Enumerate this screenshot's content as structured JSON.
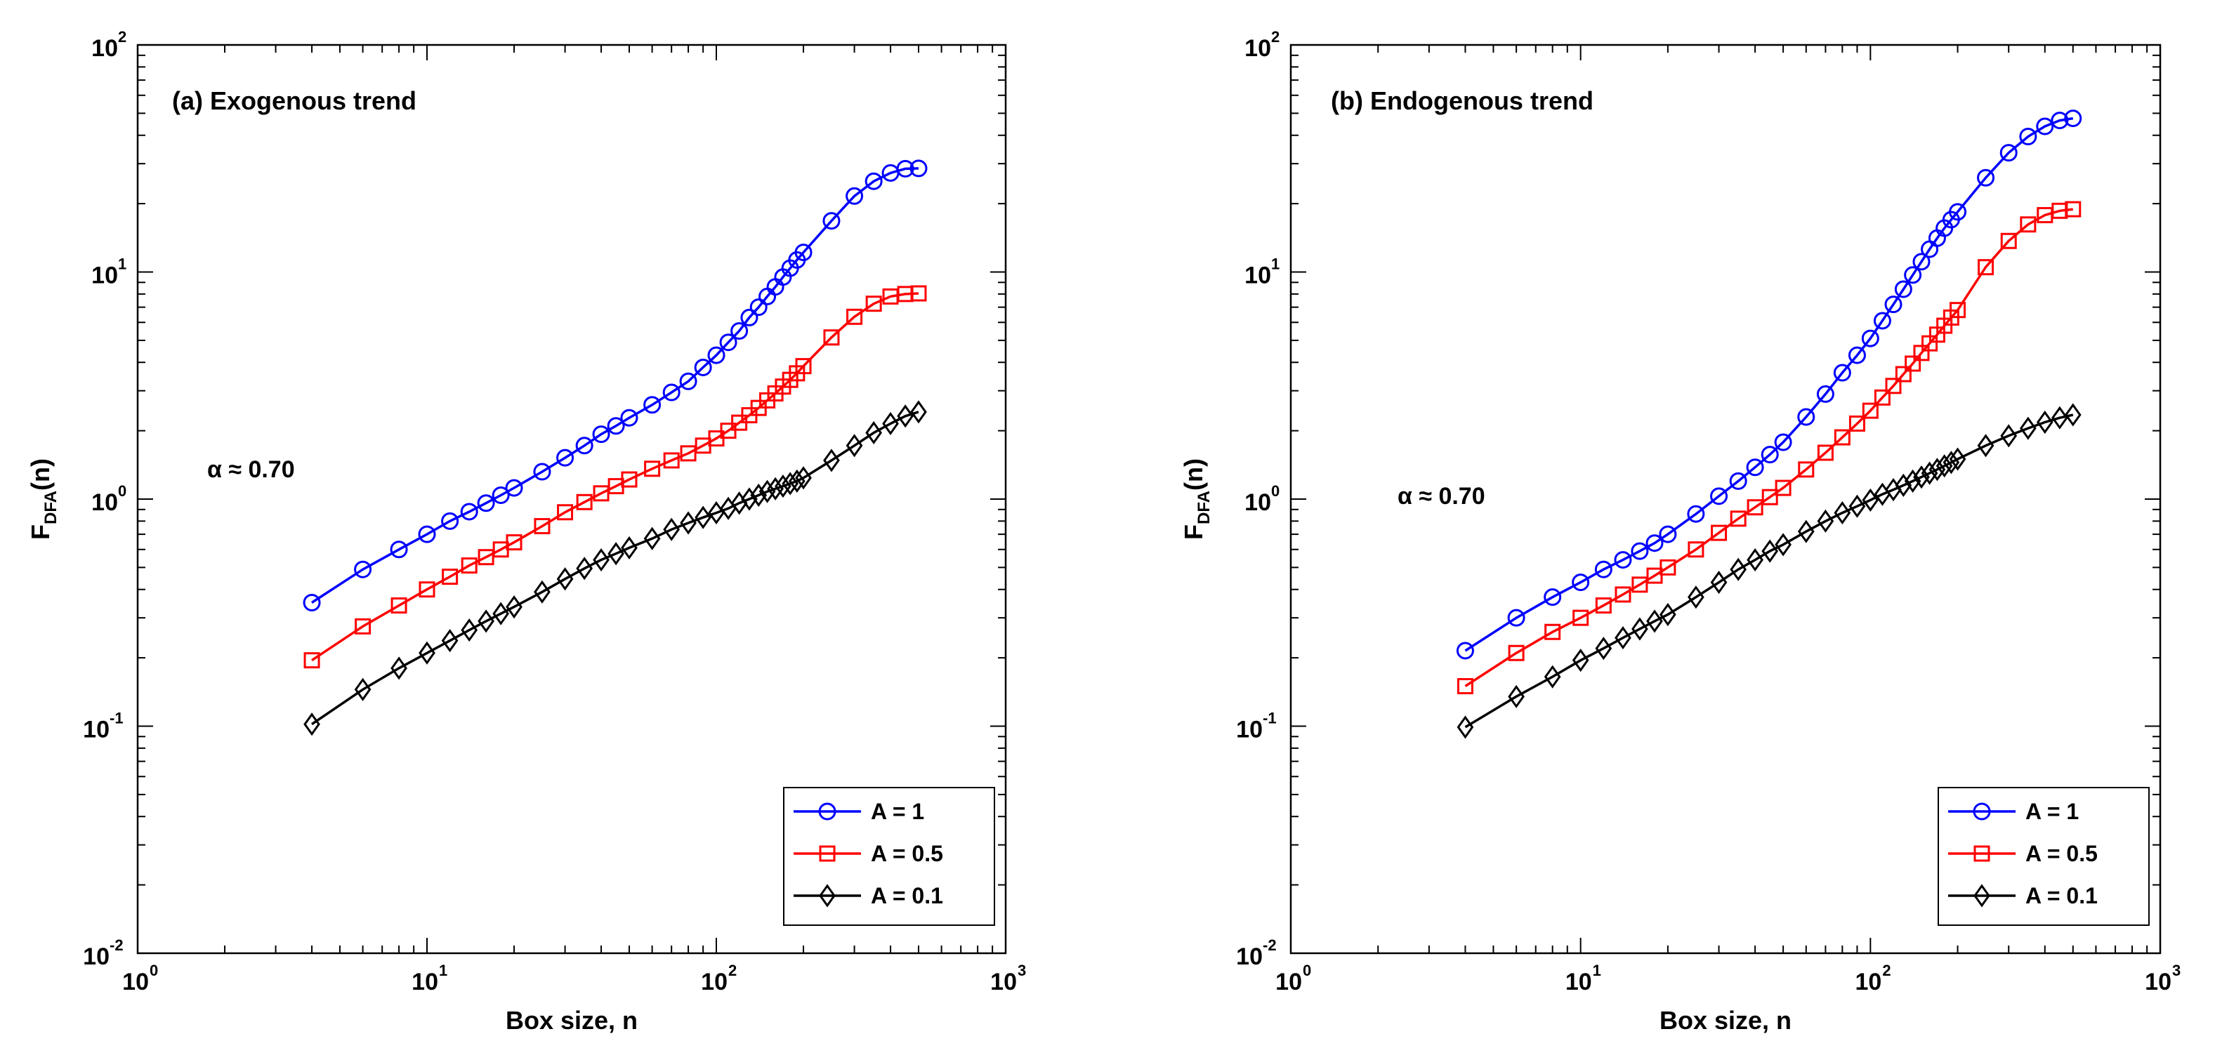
{
  "chart_data": [
    {
      "type": "line",
      "title": "(a) Exogenous trend",
      "xlabel": "Box size, n",
      "ylabel_main": "F",
      "ylabel_sub": "DFA",
      "ylabel_tail": "(n)",
      "xscale": "log",
      "yscale": "log",
      "xlim": [
        1,
        1000
      ],
      "ylim": [
        0.01,
        100
      ],
      "x_ticks": [
        {
          "base": "10",
          "exp": "0"
        },
        {
          "base": "10",
          "exp": "1"
        },
        {
          "base": "10",
          "exp": "2"
        },
        {
          "base": "10",
          "exp": "3"
        }
      ],
      "y_ticks": [
        {
          "base": "10",
          "exp": "-2"
        },
        {
          "base": "10",
          "exp": "-1"
        },
        {
          "base": "10",
          "exp": "0"
        },
        {
          "base": "10",
          "exp": "1"
        },
        {
          "base": "10",
          "exp": "2"
        }
      ],
      "annotation": "α ≈ 0.70",
      "legend_position": "bottom-right",
      "x": [
        4,
        6,
        8,
        10,
        12,
        14,
        16,
        18,
        20,
        25,
        30,
        35,
        40,
        45,
        50,
        60,
        70,
        80,
        90,
        100,
        110,
        120,
        130,
        140,
        150,
        160,
        170,
        180,
        190,
        200,
        250,
        300,
        350,
        400,
        450,
        500
      ],
      "series": [
        {
          "name": "A = 1",
          "color": "#0000ff",
          "marker": "circle",
          "values": [
            0.35,
            0.49,
            0.6,
            0.7,
            0.8,
            0.88,
            0.96,
            1.04,
            1.12,
            1.32,
            1.52,
            1.72,
            1.93,
            2.1,
            2.28,
            2.6,
            2.95,
            3.3,
            3.8,
            4.3,
            4.9,
            5.5,
            6.3,
            7.0,
            7.8,
            8.6,
            9.5,
            10.4,
            11.3,
            12.2,
            16.8,
            21.6,
            25.1,
            27.3,
            28.5,
            28.6
          ]
        },
        {
          "name": "A = 0.5",
          "color": "#ff0000",
          "marker": "square",
          "values": [
            0.195,
            0.275,
            0.34,
            0.4,
            0.455,
            0.51,
            0.555,
            0.6,
            0.645,
            0.76,
            0.875,
            0.97,
            1.06,
            1.14,
            1.22,
            1.36,
            1.48,
            1.59,
            1.72,
            1.85,
            2.0,
            2.17,
            2.34,
            2.52,
            2.72,
            2.92,
            3.13,
            3.35,
            3.58,
            3.85,
            5.15,
            6.35,
            7.25,
            7.8,
            8.0,
            8.05
          ]
        },
        {
          "name": "A = 0.1",
          "color": "#000000",
          "marker": "diamond",
          "values": [
            0.102,
            0.145,
            0.18,
            0.21,
            0.238,
            0.265,
            0.29,
            0.313,
            0.335,
            0.39,
            0.445,
            0.495,
            0.54,
            0.575,
            0.61,
            0.67,
            0.735,
            0.785,
            0.83,
            0.87,
            0.91,
            0.96,
            1.0,
            1.04,
            1.08,
            1.11,
            1.14,
            1.17,
            1.2,
            1.24,
            1.48,
            1.72,
            1.96,
            2.15,
            2.32,
            2.42
          ]
        }
      ]
    },
    {
      "type": "line",
      "title": "(b) Endogenous trend",
      "xlabel": "Box size, n",
      "ylabel_main": "F",
      "ylabel_sub": "DFA",
      "ylabel_tail": "(n)",
      "xscale": "log",
      "yscale": "log",
      "xlim": [
        1,
        1000
      ],
      "ylim": [
        0.01,
        100
      ],
      "x_ticks": [
        {
          "base": "10",
          "exp": "0"
        },
        {
          "base": "10",
          "exp": "1"
        },
        {
          "base": "10",
          "exp": "2"
        },
        {
          "base": "10",
          "exp": "3"
        }
      ],
      "y_ticks": [
        {
          "base": "10",
          "exp": "-2"
        },
        {
          "base": "10",
          "exp": "-1"
        },
        {
          "base": "10",
          "exp": "0"
        },
        {
          "base": "10",
          "exp": "1"
        },
        {
          "base": "10",
          "exp": "2"
        }
      ],
      "annotation": "α ≈ 0.70",
      "legend_position": "bottom-right",
      "x": [
        4,
        6,
        8,
        10,
        12,
        14,
        16,
        18,
        20,
        25,
        30,
        35,
        40,
        45,
        50,
        60,
        70,
        80,
        90,
        100,
        110,
        120,
        130,
        140,
        150,
        160,
        170,
        180,
        190,
        200,
        250,
        300,
        350,
        400,
        450,
        500
      ],
      "series": [
        {
          "name": "A = 1",
          "color": "#0000ff",
          "marker": "circle",
          "values": [
            0.215,
            0.3,
            0.37,
            0.43,
            0.49,
            0.54,
            0.59,
            0.64,
            0.7,
            0.86,
            1.03,
            1.2,
            1.38,
            1.57,
            1.78,
            2.3,
            2.9,
            3.6,
            4.3,
            5.1,
            6.1,
            7.2,
            8.4,
            9.7,
            11.1,
            12.6,
            14.1,
            15.6,
            17.0,
            18.4,
            26.0,
            33.5,
            39.5,
            43.8,
            46.5,
            47.5
          ]
        },
        {
          "name": "A = 0.5",
          "color": "#ff0000",
          "marker": "square",
          "values": [
            0.15,
            0.21,
            0.26,
            0.3,
            0.34,
            0.38,
            0.42,
            0.46,
            0.5,
            0.6,
            0.71,
            0.82,
            0.92,
            1.02,
            1.12,
            1.35,
            1.6,
            1.87,
            2.15,
            2.45,
            2.8,
            3.15,
            3.55,
            3.95,
            4.4,
            4.85,
            5.3,
            5.8,
            6.3,
            6.8,
            10.5,
            13.7,
            16.2,
            17.8,
            18.6,
            18.9
          ]
        },
        {
          "name": "A = 0.1",
          "color": "#000000",
          "marker": "diamond",
          "values": [
            0.099,
            0.135,
            0.165,
            0.195,
            0.22,
            0.245,
            0.268,
            0.29,
            0.31,
            0.37,
            0.43,
            0.49,
            0.54,
            0.59,
            0.63,
            0.72,
            0.8,
            0.87,
            0.93,
            0.99,
            1.05,
            1.1,
            1.15,
            1.2,
            1.25,
            1.3,
            1.35,
            1.4,
            1.45,
            1.5,
            1.72,
            1.9,
            2.05,
            2.18,
            2.28,
            2.35
          ]
        }
      ]
    }
  ]
}
